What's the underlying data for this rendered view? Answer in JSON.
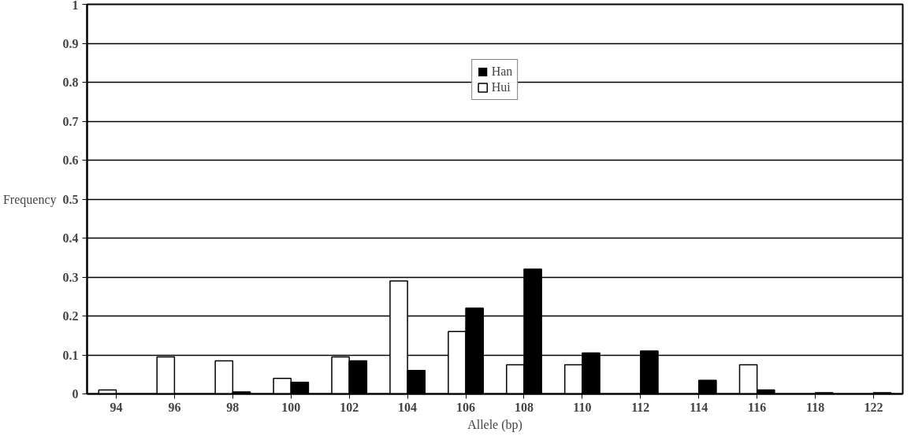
{
  "chart_data": {
    "type": "bar",
    "xlabel": "Allele (bp)",
    "ylabel": "Frequency",
    "categories": [
      "94",
      "96",
      "98",
      "100",
      "102",
      "104",
      "106",
      "108",
      "110",
      "112",
      "114",
      "116",
      "118",
      "122"
    ],
    "series": [
      {
        "name": "Hui",
        "color": "#ffffff",
        "values": [
          0.01,
          0.095,
          0.085,
          0.04,
          0.095,
          0.29,
          0.16,
          0.075,
          0.075,
          0,
          0,
          0.075,
          0,
          0
        ]
      },
      {
        "name": "Han",
        "color": "#000000",
        "values": [
          0,
          0,
          0.005,
          0.03,
          0.085,
          0.06,
          0.22,
          0.32,
          0.105,
          0.11,
          0.035,
          0.01,
          0.003,
          0.003
        ]
      }
    ],
    "ylim": [
      0,
      1
    ],
    "yticks": [
      0,
      0.1,
      0.2,
      0.3,
      0.4,
      0.5,
      0.6,
      0.7,
      0.8,
      0.9,
      1
    ],
    "grid": "y",
    "legend": "top"
  }
}
